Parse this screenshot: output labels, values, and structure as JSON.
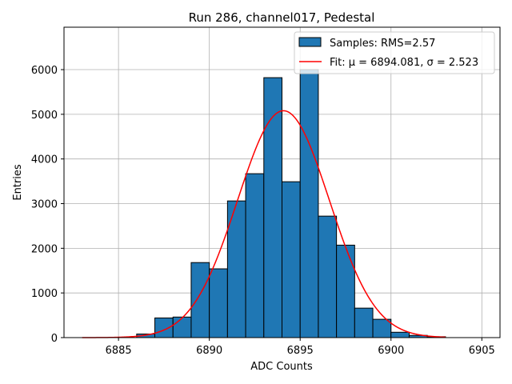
{
  "chart_data": {
    "type": "bar",
    "title": "Run 286, channel017, Pedestal",
    "xlabel": "ADC Counts",
    "ylabel": "Entries",
    "xlim": [
      6882,
      6906
    ],
    "ylim": [
      0,
      6950
    ],
    "x_ticks": [
      6885,
      6890,
      6895,
      6900,
      6905
    ],
    "x_tick_labels": [
      "6885",
      "6890",
      "6895",
      "6900",
      "6905"
    ],
    "y_ticks": [
      0,
      1000,
      2000,
      3000,
      4000,
      5000,
      6000
    ],
    "y_tick_labels": [
      "0",
      "1000",
      "2000",
      "3000",
      "4000",
      "5000",
      "6000"
    ],
    "grid": true,
    "legend_position": "upper right",
    "bin_width": 1,
    "bin_edges_start": [
      6886,
      6887,
      6888,
      6889,
      6890,
      6891,
      6892,
      6893,
      6894,
      6895,
      6896,
      6897,
      6898,
      6899,
      6900,
      6901,
      6902
    ],
    "counts": [
      80,
      440,
      460,
      1680,
      1540,
      3060,
      3670,
      5820,
      3490,
      6000,
      2720,
      2070,
      660,
      410,
      120,
      50,
      20
    ],
    "series": [
      {
        "name": "Samples: RMS=2.57",
        "kind": "histogram",
        "color": "#1f77b4"
      },
      {
        "name": "Fit: μ = 6894.081, σ = 2.523",
        "kind": "gaussian",
        "color": "#ff0000",
        "mu": 6894.081,
        "sigma": 2.523,
        "amplitude": 5080,
        "x_range": [
          6883,
          6903
        ]
      }
    ]
  }
}
